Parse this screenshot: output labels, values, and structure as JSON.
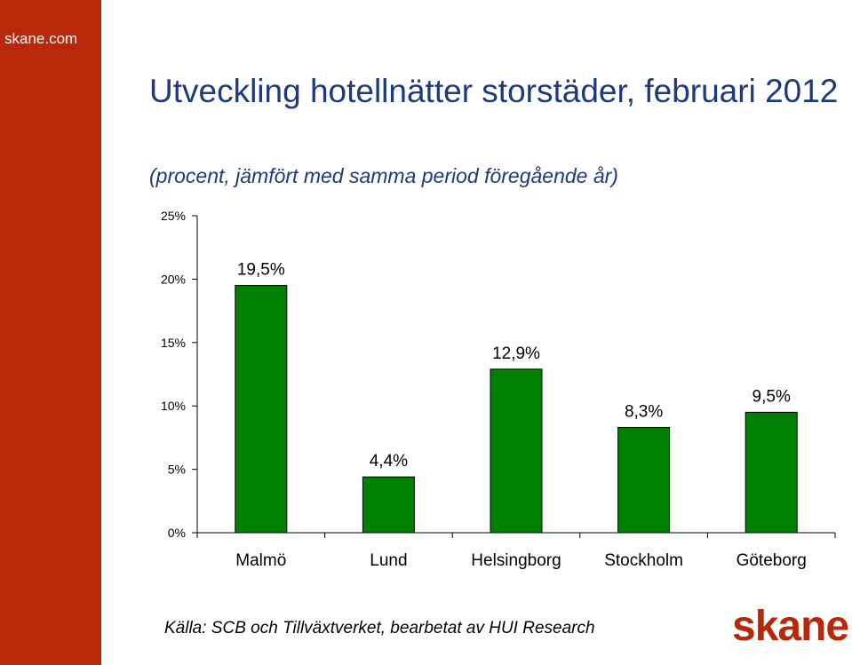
{
  "site_label": "skane.com",
  "logo_text": "skane",
  "source": "Källa: SCB och Tillväxtverket, bearbetat av HUI Research",
  "colors": {
    "sidebar": "#b8290b",
    "bar": "#008000",
    "title": "#1f3a7a"
  },
  "chart_data": {
    "type": "bar",
    "title": "Utveckling hotellnätter storstäder, februari 2012",
    "subtitle": "(procent, jämfört med samma period föregående år)",
    "categories": [
      "Malmö",
      "Lund",
      "Helsingborg",
      "Stockholm",
      "Göteborg"
    ],
    "values": [
      19.5,
      4.4,
      12.9,
      8.3,
      9.5
    ],
    "data_labels": [
      "19,5%",
      "4,4%",
      "12,9%",
      "8,3%",
      "9,5%"
    ],
    "ylim": [
      0,
      25
    ],
    "yticks": [
      "0%",
      "5%",
      "10%",
      "15%",
      "20%",
      "25%"
    ],
    "ytick_values": [
      0,
      5,
      10,
      15,
      20,
      25
    ],
    "xlabel": "",
    "ylabel": "",
    "grid": false,
    "legend": "none"
  }
}
